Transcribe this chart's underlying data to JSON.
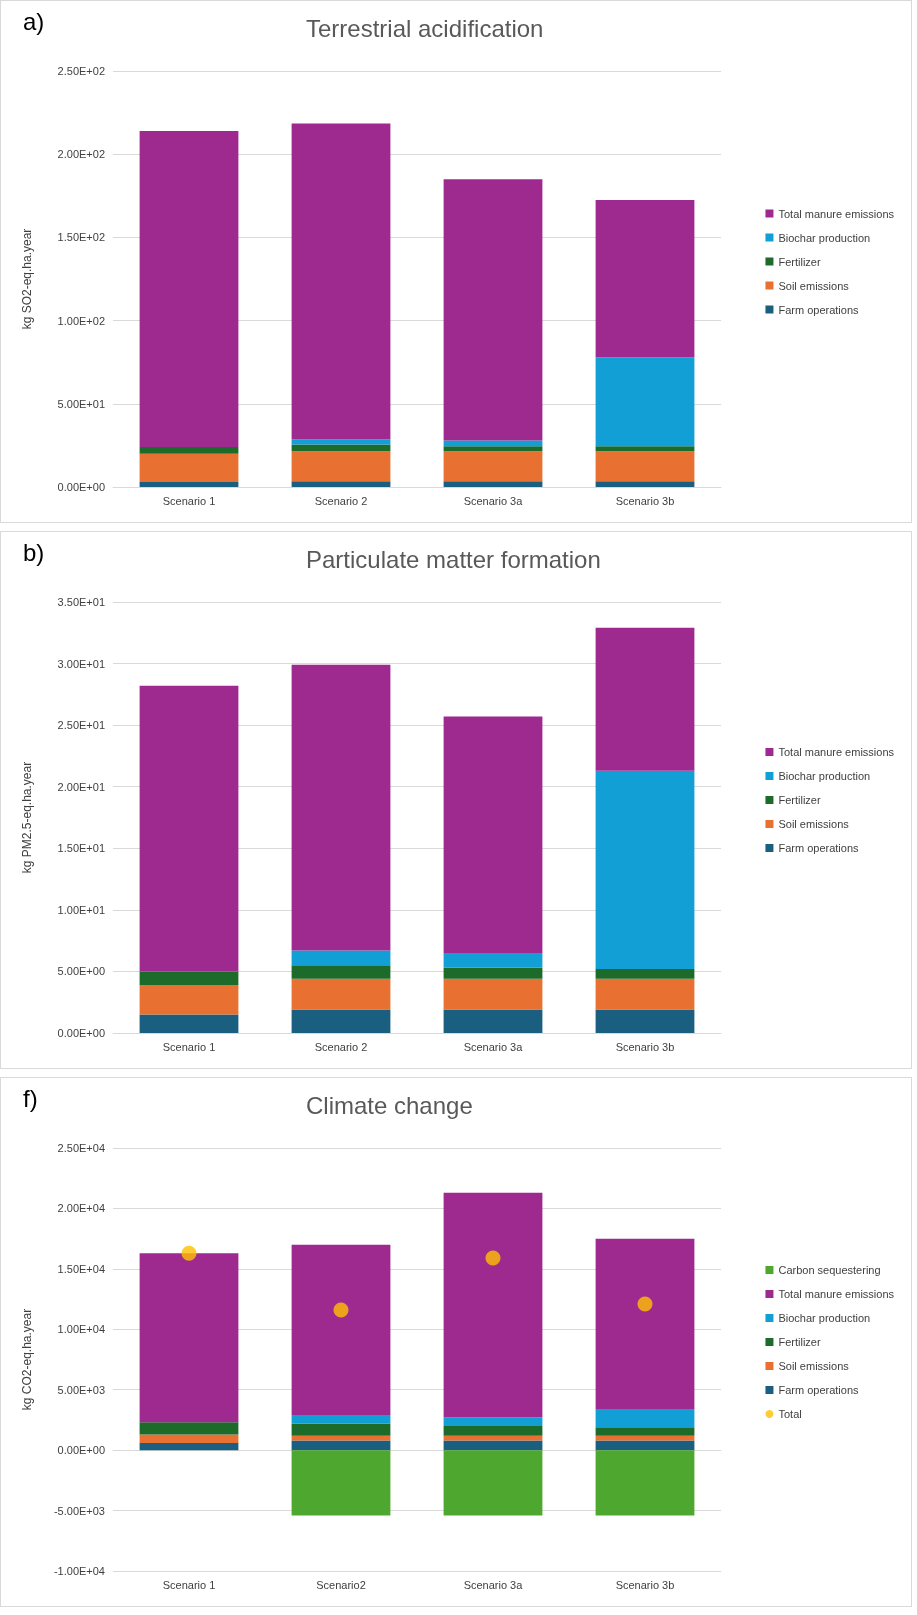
{
  "chart_data": [
    {
      "type": "bar",
      "title": "Terrestrial acidification",
      "annotations": [
        "a)"
      ],
      "ylabel": "kg SO2-eq.ha.year",
      "categories": [
        "Scenario 1",
        "Scenario 2",
        "Scenario 3a",
        "Scenario 3b"
      ],
      "stacked": true,
      "grid": "y",
      "legend": "right",
      "ylim": [
        0,
        250
      ],
      "yticks": [
        {
          "value": 0,
          "label": "0.00E+00"
        },
        {
          "value": 50,
          "label": "5.00E+01"
        },
        {
          "value": 100,
          "label": "1.00E+02"
        },
        {
          "value": 150,
          "label": "1.50E+02"
        },
        {
          "value": 200,
          "label": "2.00E+02"
        },
        {
          "value": 250,
          "label": "2.50E+02"
        }
      ],
      "series": [
        {
          "name": "Farm operations",
          "color": "#1a5f80",
          "values": [
            3,
            3.5,
            3.5,
            3.5
          ]
        },
        {
          "name": "Soil emissions",
          "color": "#e87132",
          "values": [
            17,
            18,
            18,
            18
          ]
        },
        {
          "name": "Fertilizer",
          "color": "#1c6b2a",
          "values": [
            4,
            4,
            3,
            3
          ]
        },
        {
          "name": "Biochar production",
          "color": "#119fd6",
          "values": [
            null,
            3,
            3.5,
            53.5
          ]
        },
        {
          "name": "Total manure emissions",
          "color": "#9e2a90",
          "values": [
            190,
            190,
            157,
            94.5
          ]
        }
      ]
    },
    {
      "type": "bar",
      "title": "Particulate matter formation",
      "annotations": [
        "b)"
      ],
      "ylabel": "kg PM2.5-eq.ha.year",
      "categories": [
        "Scenario 1",
        "Scenario 2",
        "Scenario 3a",
        "Scenario 3b"
      ],
      "stacked": true,
      "grid": "y",
      "legend": "right",
      "ylim": [
        0,
        35
      ],
      "yticks": [
        {
          "value": 0,
          "label": "0.00E+00"
        },
        {
          "value": 5,
          "label": "5.00E+00"
        },
        {
          "value": 10,
          "label": "1.00E+01"
        },
        {
          "value": 15,
          "label": "1.50E+01"
        },
        {
          "value": 20,
          "label": "2.00E+01"
        },
        {
          "value": 25,
          "label": "2.50E+01"
        },
        {
          "value": 30,
          "label": "3.00E+01"
        },
        {
          "value": 35,
          "label": "3.50E+01"
        }
      ],
      "series": [
        {
          "name": "Farm operations",
          "color": "#1a5f80",
          "values": [
            1.5,
            1.9,
            1.9,
            1.9
          ]
        },
        {
          "name": "Soil emissions",
          "color": "#e87132",
          "values": [
            2.4,
            2.5,
            2.5,
            2.5
          ]
        },
        {
          "name": "Fertilizer",
          "color": "#1c6b2a",
          "values": [
            1.1,
            1.1,
            0.9,
            0.8
          ]
        },
        {
          "name": "Biochar production",
          "color": "#119fd6",
          "values": [
            null,
            1.2,
            1.2,
            16.1
          ]
        },
        {
          "name": "Total manure emissions",
          "color": "#9e2a90",
          "values": [
            23.2,
            23.2,
            19.2,
            11.6
          ]
        }
      ]
    },
    {
      "type": "bar",
      "title": "Climate change",
      "annotations": [
        "f)"
      ],
      "ylabel": "kg CO2-eq.ha.year",
      "categories": [
        "Scenario 1",
        "Scenario2",
        "Scenario 3a",
        "Scenario 3b"
      ],
      "stacked": true,
      "grid": "y",
      "legend": "right",
      "marker": "circle",
      "ylim": [
        -10000,
        25000
      ],
      "yticks": [
        {
          "value": -10000,
          "label": "-1.00E+04"
        },
        {
          "value": -5000,
          "label": "-5.00E+03"
        },
        {
          "value": 0,
          "label": "0.00E+00"
        },
        {
          "value": 5000,
          "label": "5.00E+03"
        },
        {
          "value": 10000,
          "label": "1.00E+04"
        },
        {
          "value": 15000,
          "label": "1.50E+04"
        },
        {
          "value": 20000,
          "label": "2.00E+04"
        },
        {
          "value": 25000,
          "label": "2.50E+04"
        }
      ],
      "series": [
        {
          "name": "Farm operations",
          "color": "#1a5f80",
          "values": [
            600,
            800,
            800,
            800
          ]
        },
        {
          "name": "Soil emissions",
          "color": "#e87132",
          "values": [
            700,
            400,
            400,
            400
          ]
        },
        {
          "name": "Fertilizer",
          "color": "#1c6b2a",
          "values": [
            1000,
            1000,
            800,
            700
          ]
        },
        {
          "name": "Biochar production",
          "color": "#119fd6",
          "values": [
            null,
            700,
            700,
            1500
          ]
        },
        {
          "name": "Total manure emissions",
          "color": "#9e2a90",
          "values": [
            14000,
            14100,
            18600,
            14100
          ]
        },
        {
          "name": "Carbon sequestering",
          "color": "#4ea72e",
          "values": [
            null,
            -5400,
            -5400,
            -5400
          ]
        },
        {
          "name": "Total",
          "type": "scatter",
          "color": "#ffc000",
          "x": [
            "Scenario 1",
            "Scenario2",
            "Scenario 3a",
            "Scenario 3b"
          ],
          "values": [
            16300,
            11600,
            15900,
            12100
          ]
        }
      ]
    }
  ]
}
